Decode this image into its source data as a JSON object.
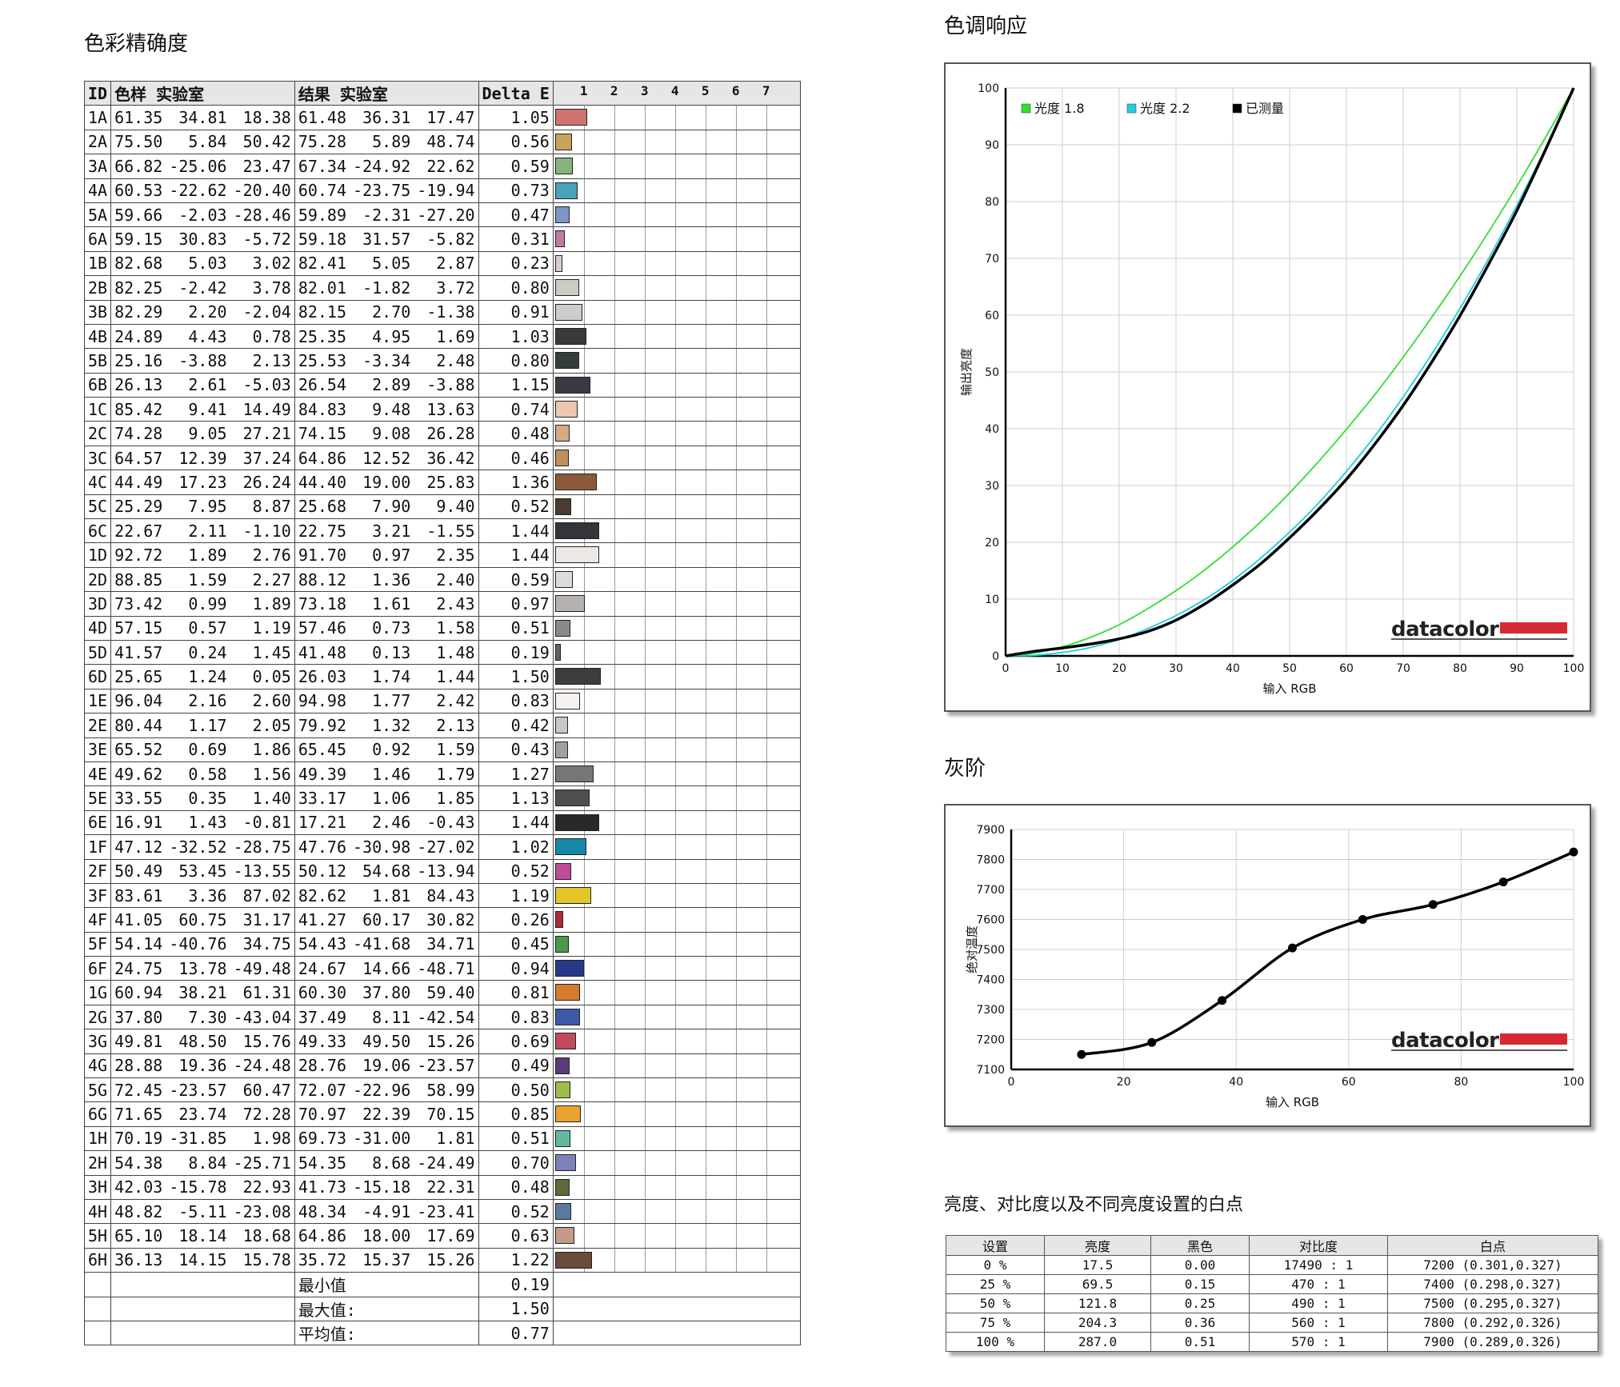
{
  "titles": {
    "color_accuracy": "色彩精确度",
    "tone_response": "色调响应",
    "grayscale": "灰阶",
    "brightness": "亮度、对比度以及不同亮度设置的白点"
  },
  "color_accuracy": {
    "headers": {
      "id": "ID",
      "sample": "色样 实验室",
      "result": "结果 实验室",
      "delta": "Delta E"
    },
    "scale_ticks": [
      "1",
      "2",
      "3",
      "4",
      "5",
      "6",
      "7"
    ],
    "rows": [
      {
        "id": "1A",
        "s": [
          "61.35",
          "34.81",
          "18.38"
        ],
        "r": [
          "61.48",
          "36.31",
          "17.47"
        ],
        "de": "1.05",
        "color": "#d0736f"
      },
      {
        "id": "2A",
        "s": [
          "75.50",
          "5.84",
          "50.42"
        ],
        "r": [
          "75.28",
          "5.89",
          "48.74"
        ],
        "de": "0.56",
        "color": "#c9a35a"
      },
      {
        "id": "3A",
        "s": [
          "66.82",
          "-25.06",
          "23.47"
        ],
        "r": [
          "67.34",
          "-24.92",
          "22.62"
        ],
        "de": "0.59",
        "color": "#86b47a"
      },
      {
        "id": "4A",
        "s": [
          "60.53",
          "-22.62",
          "-20.40"
        ],
        "r": [
          "60.74",
          "-23.75",
          "-19.94"
        ],
        "de": "0.73",
        "color": "#4aa3b8"
      },
      {
        "id": "5A",
        "s": [
          "59.66",
          "-2.03",
          "-28.46"
        ],
        "r": [
          "59.89",
          "-2.31",
          "-27.20"
        ],
        "de": "0.47",
        "color": "#7e95c8"
      },
      {
        "id": "6A",
        "s": [
          "59.15",
          "30.83",
          "-5.72"
        ],
        "r": [
          "59.18",
          "31.57",
          "-5.82"
        ],
        "de": "0.31",
        "color": "#c27aa6"
      },
      {
        "id": "1B",
        "s": [
          "82.68",
          "5.03",
          "3.02"
        ],
        "r": [
          "82.41",
          "5.05",
          "2.87"
        ],
        "de": "0.23",
        "color": "#d9cdc9"
      },
      {
        "id": "2B",
        "s": [
          "82.25",
          "-2.42",
          "3.78"
        ],
        "r": [
          "82.01",
          "-1.82",
          "3.72"
        ],
        "de": "0.80",
        "color": "#c9ccc4"
      },
      {
        "id": "3B",
        "s": [
          "82.29",
          "2.20",
          "-2.04"
        ],
        "r": [
          "82.15",
          "2.70",
          "-1.38"
        ],
        "de": "0.91",
        "color": "#cfccd0"
      },
      {
        "id": "4B",
        "s": [
          "24.89",
          "4.43",
          "0.78"
        ],
        "r": [
          "25.35",
          "4.95",
          "1.69"
        ],
        "de": "1.03",
        "color": "#3c3939"
      },
      {
        "id": "5B",
        "s": [
          "25.16",
          "-3.88",
          "2.13"
        ],
        "r": [
          "25.53",
          "-3.34",
          "2.48"
        ],
        "de": "0.80",
        "color": "#343e38"
      },
      {
        "id": "6B",
        "s": [
          "26.13",
          "2.61",
          "-5.03"
        ],
        "r": [
          "26.54",
          "2.89",
          "-3.88"
        ],
        "de": "1.15",
        "color": "#3a3a46"
      },
      {
        "id": "1C",
        "s": [
          "85.42",
          "9.41",
          "14.49"
        ],
        "r": [
          "84.83",
          "9.48",
          "13.63"
        ],
        "de": "0.74",
        "color": "#ecc7ad"
      },
      {
        "id": "2C",
        "s": [
          "74.28",
          "9.05",
          "27.21"
        ],
        "r": [
          "74.15",
          "9.08",
          "26.28"
        ],
        "de": "0.48",
        "color": "#d5aa84"
      },
      {
        "id": "3C",
        "s": [
          "64.57",
          "12.39",
          "37.24"
        ],
        "r": [
          "64.86",
          "12.52",
          "36.42"
        ],
        "de": "0.46",
        "color": "#c08f5c"
      },
      {
        "id": "4C",
        "s": [
          "44.49",
          "17.23",
          "26.24"
        ],
        "r": [
          "44.40",
          "19.00",
          "25.83"
        ],
        "de": "1.36",
        "color": "#8a5a3a"
      },
      {
        "id": "5C",
        "s": [
          "25.29",
          "7.95",
          "8.87"
        ],
        "r": [
          "25.68",
          "7.90",
          "9.40"
        ],
        "de": "0.52",
        "color": "#4a3a32"
      },
      {
        "id": "6C",
        "s": [
          "22.67",
          "2.11",
          "-1.10"
        ],
        "r": [
          "22.75",
          "3.21",
          "-1.55"
        ],
        "de": "1.44",
        "color": "#363438"
      },
      {
        "id": "1D",
        "s": [
          "92.72",
          "1.89",
          "2.76"
        ],
        "r": [
          "91.70",
          "0.97",
          "2.35"
        ],
        "de": "1.44",
        "color": "#ebe8e5"
      },
      {
        "id": "2D",
        "s": [
          "88.85",
          "1.59",
          "2.27"
        ],
        "r": [
          "88.12",
          "1.36",
          "2.40"
        ],
        "de": "0.59",
        "color": "#dedbd8"
      },
      {
        "id": "3D",
        "s": [
          "73.42",
          "0.99",
          "1.89"
        ],
        "r": [
          "73.18",
          "1.61",
          "2.43"
        ],
        "de": "0.97",
        "color": "#b4b1ae"
      },
      {
        "id": "4D",
        "s": [
          "57.15",
          "0.57",
          "1.19"
        ],
        "r": [
          "57.46",
          "0.73",
          "1.58"
        ],
        "de": "0.51",
        "color": "#8c8a88"
      },
      {
        "id": "5D",
        "s": [
          "41.57",
          "0.24",
          "1.45"
        ],
        "r": [
          "41.48",
          "0.13",
          "1.48"
        ],
        "de": "0.19",
        "color": "#646261"
      },
      {
        "id": "6D",
        "s": [
          "25.65",
          "1.24",
          "0.05"
        ],
        "r": [
          "26.03",
          "1.74",
          "1.44"
        ],
        "de": "1.50",
        "color": "#3e3c3c"
      },
      {
        "id": "1E",
        "s": [
          "96.04",
          "2.16",
          "2.60"
        ],
        "r": [
          "94.98",
          "1.77",
          "2.42"
        ],
        "de": "0.83",
        "color": "#f5f1ee"
      },
      {
        "id": "2E",
        "s": [
          "80.44",
          "1.17",
          "2.05"
        ],
        "r": [
          "79.92",
          "1.32",
          "2.13"
        ],
        "de": "0.42",
        "color": "#c9c6c4"
      },
      {
        "id": "3E",
        "s": [
          "65.52",
          "0.69",
          "1.86"
        ],
        "r": [
          "65.45",
          "0.92",
          "1.59"
        ],
        "de": "0.43",
        "color": "#a19f9d"
      },
      {
        "id": "4E",
        "s": [
          "49.62",
          "0.58",
          "1.56"
        ],
        "r": [
          "49.39",
          "1.46",
          "1.79"
        ],
        "de": "1.27",
        "color": "#787674"
      },
      {
        "id": "5E",
        "s": [
          "33.55",
          "0.35",
          "1.40"
        ],
        "r": [
          "33.17",
          "1.06",
          "1.85"
        ],
        "de": "1.13",
        "color": "#504e4d"
      },
      {
        "id": "6E",
        "s": [
          "16.91",
          "1.43",
          "-0.81"
        ],
        "r": [
          "17.21",
          "2.46",
          "-0.43"
        ],
        "de": "1.44",
        "color": "#2a292a"
      },
      {
        "id": "1F",
        "s": [
          "47.12",
          "-32.52",
          "-28.75"
        ],
        "r": [
          "47.76",
          "-30.98",
          "-27.02"
        ],
        "de": "1.02",
        "color": "#1888a8"
      },
      {
        "id": "2F",
        "s": [
          "50.49",
          "53.45",
          "-13.55"
        ],
        "r": [
          "50.12",
          "54.68",
          "-13.94"
        ],
        "de": "0.52",
        "color": "#c04b98"
      },
      {
        "id": "3F",
        "s": [
          "83.61",
          "3.36",
          "87.02"
        ],
        "r": [
          "82.62",
          "1.81",
          "84.43"
        ],
        "de": "1.19",
        "color": "#e2c62a"
      },
      {
        "id": "4F",
        "s": [
          "41.05",
          "60.75",
          "31.17"
        ],
        "r": [
          "41.27",
          "60.17",
          "30.82"
        ],
        "de": "0.26",
        "color": "#b02a3a"
      },
      {
        "id": "5F",
        "s": [
          "54.14",
          "-40.76",
          "34.75"
        ],
        "r": [
          "54.43",
          "-41.68",
          "34.71"
        ],
        "de": "0.45",
        "color": "#4a9a48"
      },
      {
        "id": "6F",
        "s": [
          "24.75",
          "13.78",
          "-49.48"
        ],
        "r": [
          "24.67",
          "14.66",
          "-48.71"
        ],
        "de": "0.94",
        "color": "#273a8a"
      },
      {
        "id": "1G",
        "s": [
          "60.94",
          "38.21",
          "61.31"
        ],
        "r": [
          "60.30",
          "37.80",
          "59.40"
        ],
        "de": "0.81",
        "color": "#d67a2e"
      },
      {
        "id": "2G",
        "s": [
          "37.80",
          "7.30",
          "-43.04"
        ],
        "r": [
          "37.49",
          "8.11",
          "-42.54"
        ],
        "de": "0.83",
        "color": "#3a5aa8"
      },
      {
        "id": "3G",
        "s": [
          "49.81",
          "48.50",
          "15.76"
        ],
        "r": [
          "49.33",
          "49.50",
          "15.26"
        ],
        "de": "0.69",
        "color": "#c04a5e"
      },
      {
        "id": "4G",
        "s": [
          "28.88",
          "19.36",
          "-24.48"
        ],
        "r": [
          "28.76",
          "19.06",
          "-23.57"
        ],
        "de": "0.49",
        "color": "#5a3c78"
      },
      {
        "id": "5G",
        "s": [
          "72.45",
          "-23.57",
          "60.47"
        ],
        "r": [
          "72.07",
          "-22.96",
          "58.99"
        ],
        "de": "0.50",
        "color": "#a0bc48"
      },
      {
        "id": "6G",
        "s": [
          "71.65",
          "23.74",
          "72.28"
        ],
        "r": [
          "70.97",
          "22.39",
          "70.15"
        ],
        "de": "0.85",
        "color": "#e8a22e"
      },
      {
        "id": "1H",
        "s": [
          "70.19",
          "-31.85",
          "1.98"
        ],
        "r": [
          "69.73",
          "-31.00",
          "1.81"
        ],
        "de": "0.51",
        "color": "#62b8a0"
      },
      {
        "id": "2H",
        "s": [
          "54.38",
          "8.84",
          "-25.71"
        ],
        "r": [
          "54.35",
          "8.68",
          "-24.49"
        ],
        "de": "0.70",
        "color": "#7c82b8"
      },
      {
        "id": "3H",
        "s": [
          "42.03",
          "-15.78",
          "22.93"
        ],
        "r": [
          "41.73",
          "-15.18",
          "22.31"
        ],
        "de": "0.48",
        "color": "#5a6a3a"
      },
      {
        "id": "4H",
        "s": [
          "48.82",
          "-5.11",
          "-23.08"
        ],
        "r": [
          "48.34",
          "-4.91",
          "-23.41"
        ],
        "de": "0.52",
        "color": "#5a78a0"
      },
      {
        "id": "5H",
        "s": [
          "65.10",
          "18.14",
          "18.68"
        ],
        "r": [
          "64.86",
          "18.00",
          "17.69"
        ],
        "de": "0.63",
        "color": "#c49a8a"
      },
      {
        "id": "6H",
        "s": [
          "36.13",
          "14.15",
          "15.78"
        ],
        "r": [
          "35.72",
          "15.37",
          "15.26"
        ],
        "de": "1.22",
        "color": "#6a4a3a"
      }
    ],
    "summary": [
      {
        "label": "最小值",
        "value": "0.19"
      },
      {
        "label": "最大值:",
        "value": "1.50"
      },
      {
        "label": "平均值:",
        "value": "0.77"
      }
    ]
  },
  "chart_data": [
    {
      "type": "line",
      "title": "",
      "xlabel": "输入 RGB",
      "ylabel": "输出亮度",
      "xlim": [
        0,
        100
      ],
      "ylim": [
        0,
        100
      ],
      "xticks": [
        0,
        10,
        20,
        30,
        40,
        50,
        60,
        70,
        80,
        90,
        100
      ],
      "yticks": [
        0,
        10,
        20,
        30,
        40,
        50,
        60,
        70,
        80,
        90,
        100
      ],
      "grid": true,
      "legend": "top-left",
      "x": [
        0,
        5,
        10,
        15,
        20,
        25,
        30,
        35,
        40,
        45,
        50,
        55,
        60,
        65,
        70,
        75,
        80,
        85,
        90,
        95,
        100
      ],
      "series": [
        {
          "name": "光度 1.8",
          "color": "#33dd33",
          "values": [
            0,
            0.5,
            1.6,
            3.3,
            5.5,
            8.3,
            11.5,
            15.1,
            19.2,
            23.7,
            28.7,
            34.1,
            39.9,
            46.0,
            52.6,
            59.6,
            66.9,
            74.6,
            82.7,
            91.2,
            100
          ]
        },
        {
          "name": "光度 2.2",
          "color": "#22ccdd",
          "values": [
            0,
            0.1,
            0.6,
            1.5,
            2.9,
            4.8,
            7.1,
            9.9,
            13.3,
            17.3,
            21.8,
            26.8,
            32.5,
            38.7,
            45.6,
            53.1,
            61.2,
            69.9,
            79.3,
            89.3,
            100
          ]
        },
        {
          "name": "已测量",
          "color": "#000000",
          "values": [
            0,
            0.8,
            1.4,
            2.1,
            3.0,
            4.3,
            6.3,
            9.1,
            12.5,
            16.3,
            20.8,
            25.7,
            31.1,
            37.3,
            44.1,
            51.7,
            59.9,
            68.9,
            78.4,
            89.0,
            100
          ]
        }
      ],
      "markers": false,
      "watermark": "datacolor"
    },
    {
      "type": "line",
      "title": "",
      "xlabel": "输入 RGB",
      "ylabel": "绝对温度",
      "xlim": [
        0,
        100
      ],
      "ylim": [
        7100,
        7900
      ],
      "xticks": [
        0,
        20,
        40,
        60,
        80,
        100
      ],
      "yticks": [
        7100,
        7200,
        7300,
        7400,
        7500,
        7600,
        7700,
        7800,
        7900
      ],
      "grid": true,
      "x": [
        12.5,
        25,
        37.5,
        50,
        62.5,
        75,
        87.5,
        100
      ],
      "series": [
        {
          "name": "",
          "color": "#000000",
          "values": [
            7150,
            7190,
            7330,
            7505,
            7600,
            7650,
            7725,
            7825
          ]
        }
      ],
      "markers": true,
      "watermark": "datacolor"
    }
  ],
  "white_point": {
    "headers": [
      "设置",
      "亮度",
      "黑色",
      "对比度",
      "白点"
    ],
    "rows": [
      [
        "0 %",
        "17.5",
        "0.00",
        "17490 : 1",
        "7200 (0.301,0.327)"
      ],
      [
        "25 %",
        "69.5",
        "0.15",
        "470 : 1",
        "7400 (0.298,0.327)"
      ],
      [
        "50 %",
        "121.8",
        "0.25",
        "490 : 1",
        "7500 (0.295,0.327)"
      ],
      [
        "75 %",
        "204.3",
        "0.36",
        "560 : 1",
        "7800 (0.292,0.326)"
      ],
      [
        "100 %",
        "287.0",
        "0.51",
        "570 : 1",
        "7900 (0.289,0.326)"
      ]
    ]
  }
}
